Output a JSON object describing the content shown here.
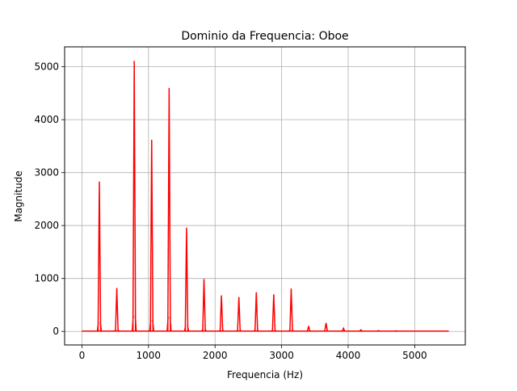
{
  "chart_data": {
    "type": "line",
    "title": "Dominio da Frequencia: Oboe",
    "xlabel": "Frequencia (Hz)",
    "ylabel": "Magnitude",
    "xlim": [
      -260,
      5760
    ],
    "ylim": [
      -256,
      5376
    ],
    "xticks": [
      0,
      1000,
      2000,
      3000,
      4000,
      5000
    ],
    "yticks": [
      0,
      1000,
      2000,
      3000,
      4000,
      5000
    ],
    "xtick_labels": [
      "0",
      "1000",
      "2000",
      "3000",
      "4000",
      "5000"
    ],
    "ytick_labels": [
      "0",
      "1000",
      "2000",
      "3000",
      "4000",
      "5000"
    ],
    "grid": true,
    "legend": "none",
    "series": [
      {
        "color": "#ff0000",
        "baseline": 5,
        "x_range": [
          0,
          5512
        ],
        "peaks": [
          {
            "x": 262,
            "y": 2830
          },
          {
            "x": 524,
            "y": 820
          },
          {
            "x": 786,
            "y": 5110
          },
          {
            "x": 1048,
            "y": 3620
          },
          {
            "x": 1310,
            "y": 4600
          },
          {
            "x": 1572,
            "y": 1960
          },
          {
            "x": 1834,
            "y": 990
          },
          {
            "x": 2096,
            "y": 680
          },
          {
            "x": 2358,
            "y": 650
          },
          {
            "x": 2620,
            "y": 740
          },
          {
            "x": 2882,
            "y": 700
          },
          {
            "x": 3144,
            "y": 810
          },
          {
            "x": 3406,
            "y": 100
          },
          {
            "x": 3668,
            "y": 160
          },
          {
            "x": 3930,
            "y": 60
          },
          {
            "x": 4192,
            "y": 30
          },
          {
            "x": 4454,
            "y": 15
          },
          {
            "x": 4716,
            "y": 10
          }
        ]
      }
    ]
  }
}
